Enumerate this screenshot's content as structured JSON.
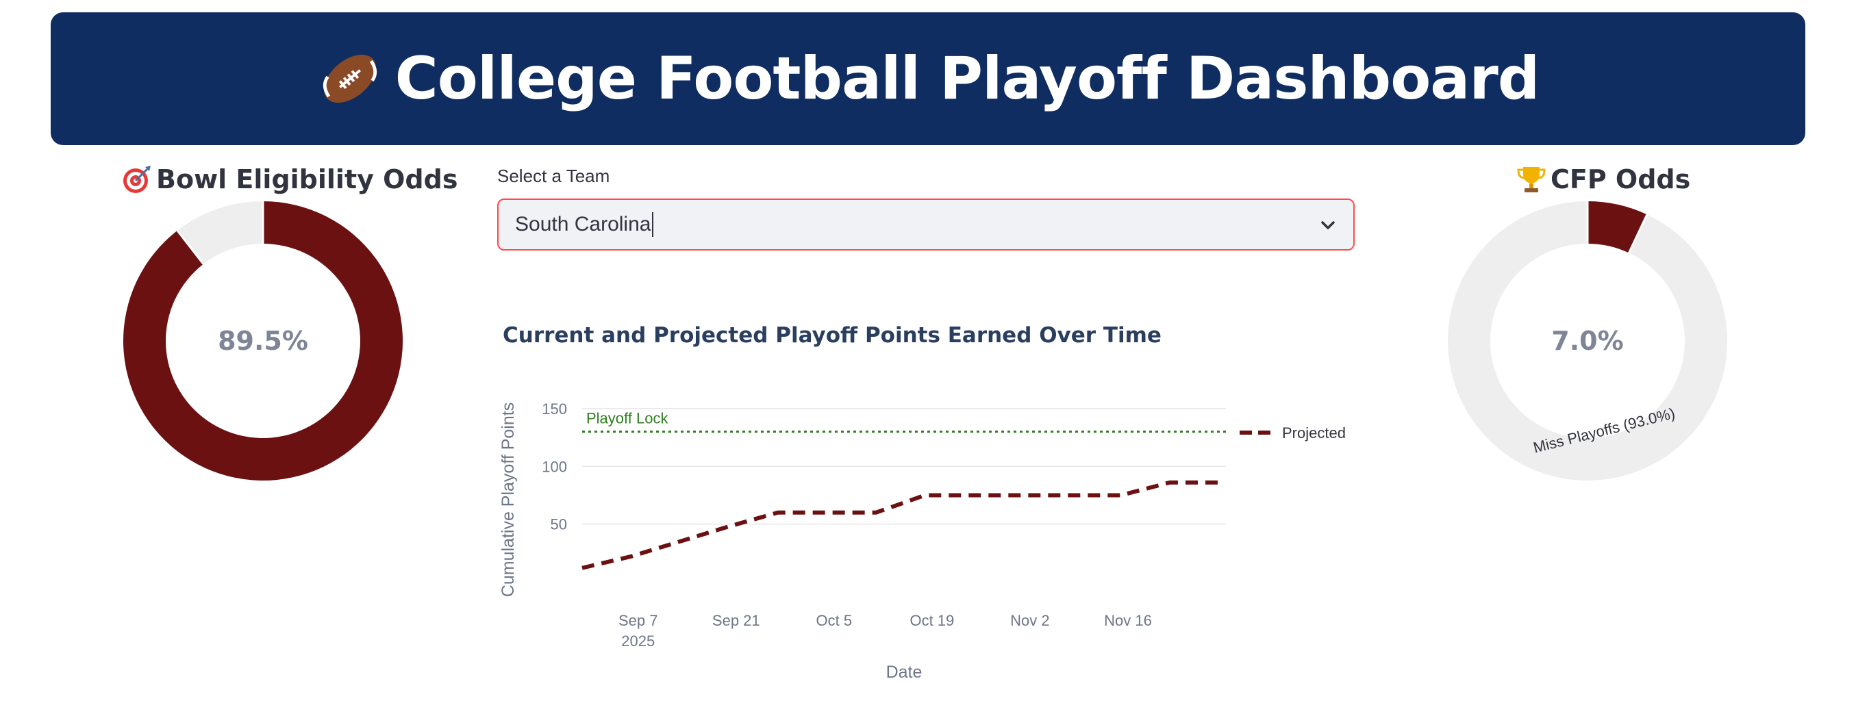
{
  "header": {
    "icon": "football-icon",
    "title": "College Football Playoff Dashboard",
    "background": "#0f2d60"
  },
  "bowl_panel": {
    "icon": "target-icon",
    "title": "Bowl Eligibility Odds",
    "center_label": "89.5%",
    "value_fraction": 0.895,
    "fill_color": "#6b1112",
    "rest_color": "#eeeeee"
  },
  "team_select": {
    "label": "Select a Team",
    "value": "South Carolina"
  },
  "cfp_panel": {
    "icon": "trophy-icon",
    "title": "CFP Odds",
    "center_label": "7.0%",
    "value_fraction": 0.07,
    "slice_label": "Miss Playoffs (93.0%)",
    "fill_color": "#6b1112",
    "rest_color": "#eeeeee"
  },
  "chart_data": {
    "type": "line",
    "title": "Current and Projected Playoff Points Earned Over Time",
    "xlabel": "Date",
    "ylabel": "Cumulative Playoff Points",
    "x_ticks": [
      "Sep 7",
      "Sep 21",
      "Oct 5",
      "Oct 19",
      "Nov 2",
      "Nov 16"
    ],
    "x_tick_year": "2025",
    "y_ticks": [
      50,
      100,
      150
    ],
    "ylim": [
      0,
      160
    ],
    "grid": true,
    "legend_position": "right",
    "reference_line": {
      "label": "Playoff Lock",
      "y": 130,
      "color": "#2e7d1e"
    },
    "series": [
      {
        "name": "Projected",
        "color": "#6b1112",
        "x": [
          "2025-08-30",
          "2025-09-06",
          "2025-09-13",
          "2025-09-20",
          "2025-09-27",
          "2025-10-04",
          "2025-10-11",
          "2025-10-18",
          "2025-10-25",
          "2025-11-01",
          "2025-11-08",
          "2025-11-15",
          "2025-11-22",
          "2025-11-29"
        ],
        "values": [
          12,
          22,
          35,
          48,
          60,
          60,
          60,
          75,
          75,
          75,
          75,
          75,
          86,
          86
        ]
      }
    ]
  }
}
